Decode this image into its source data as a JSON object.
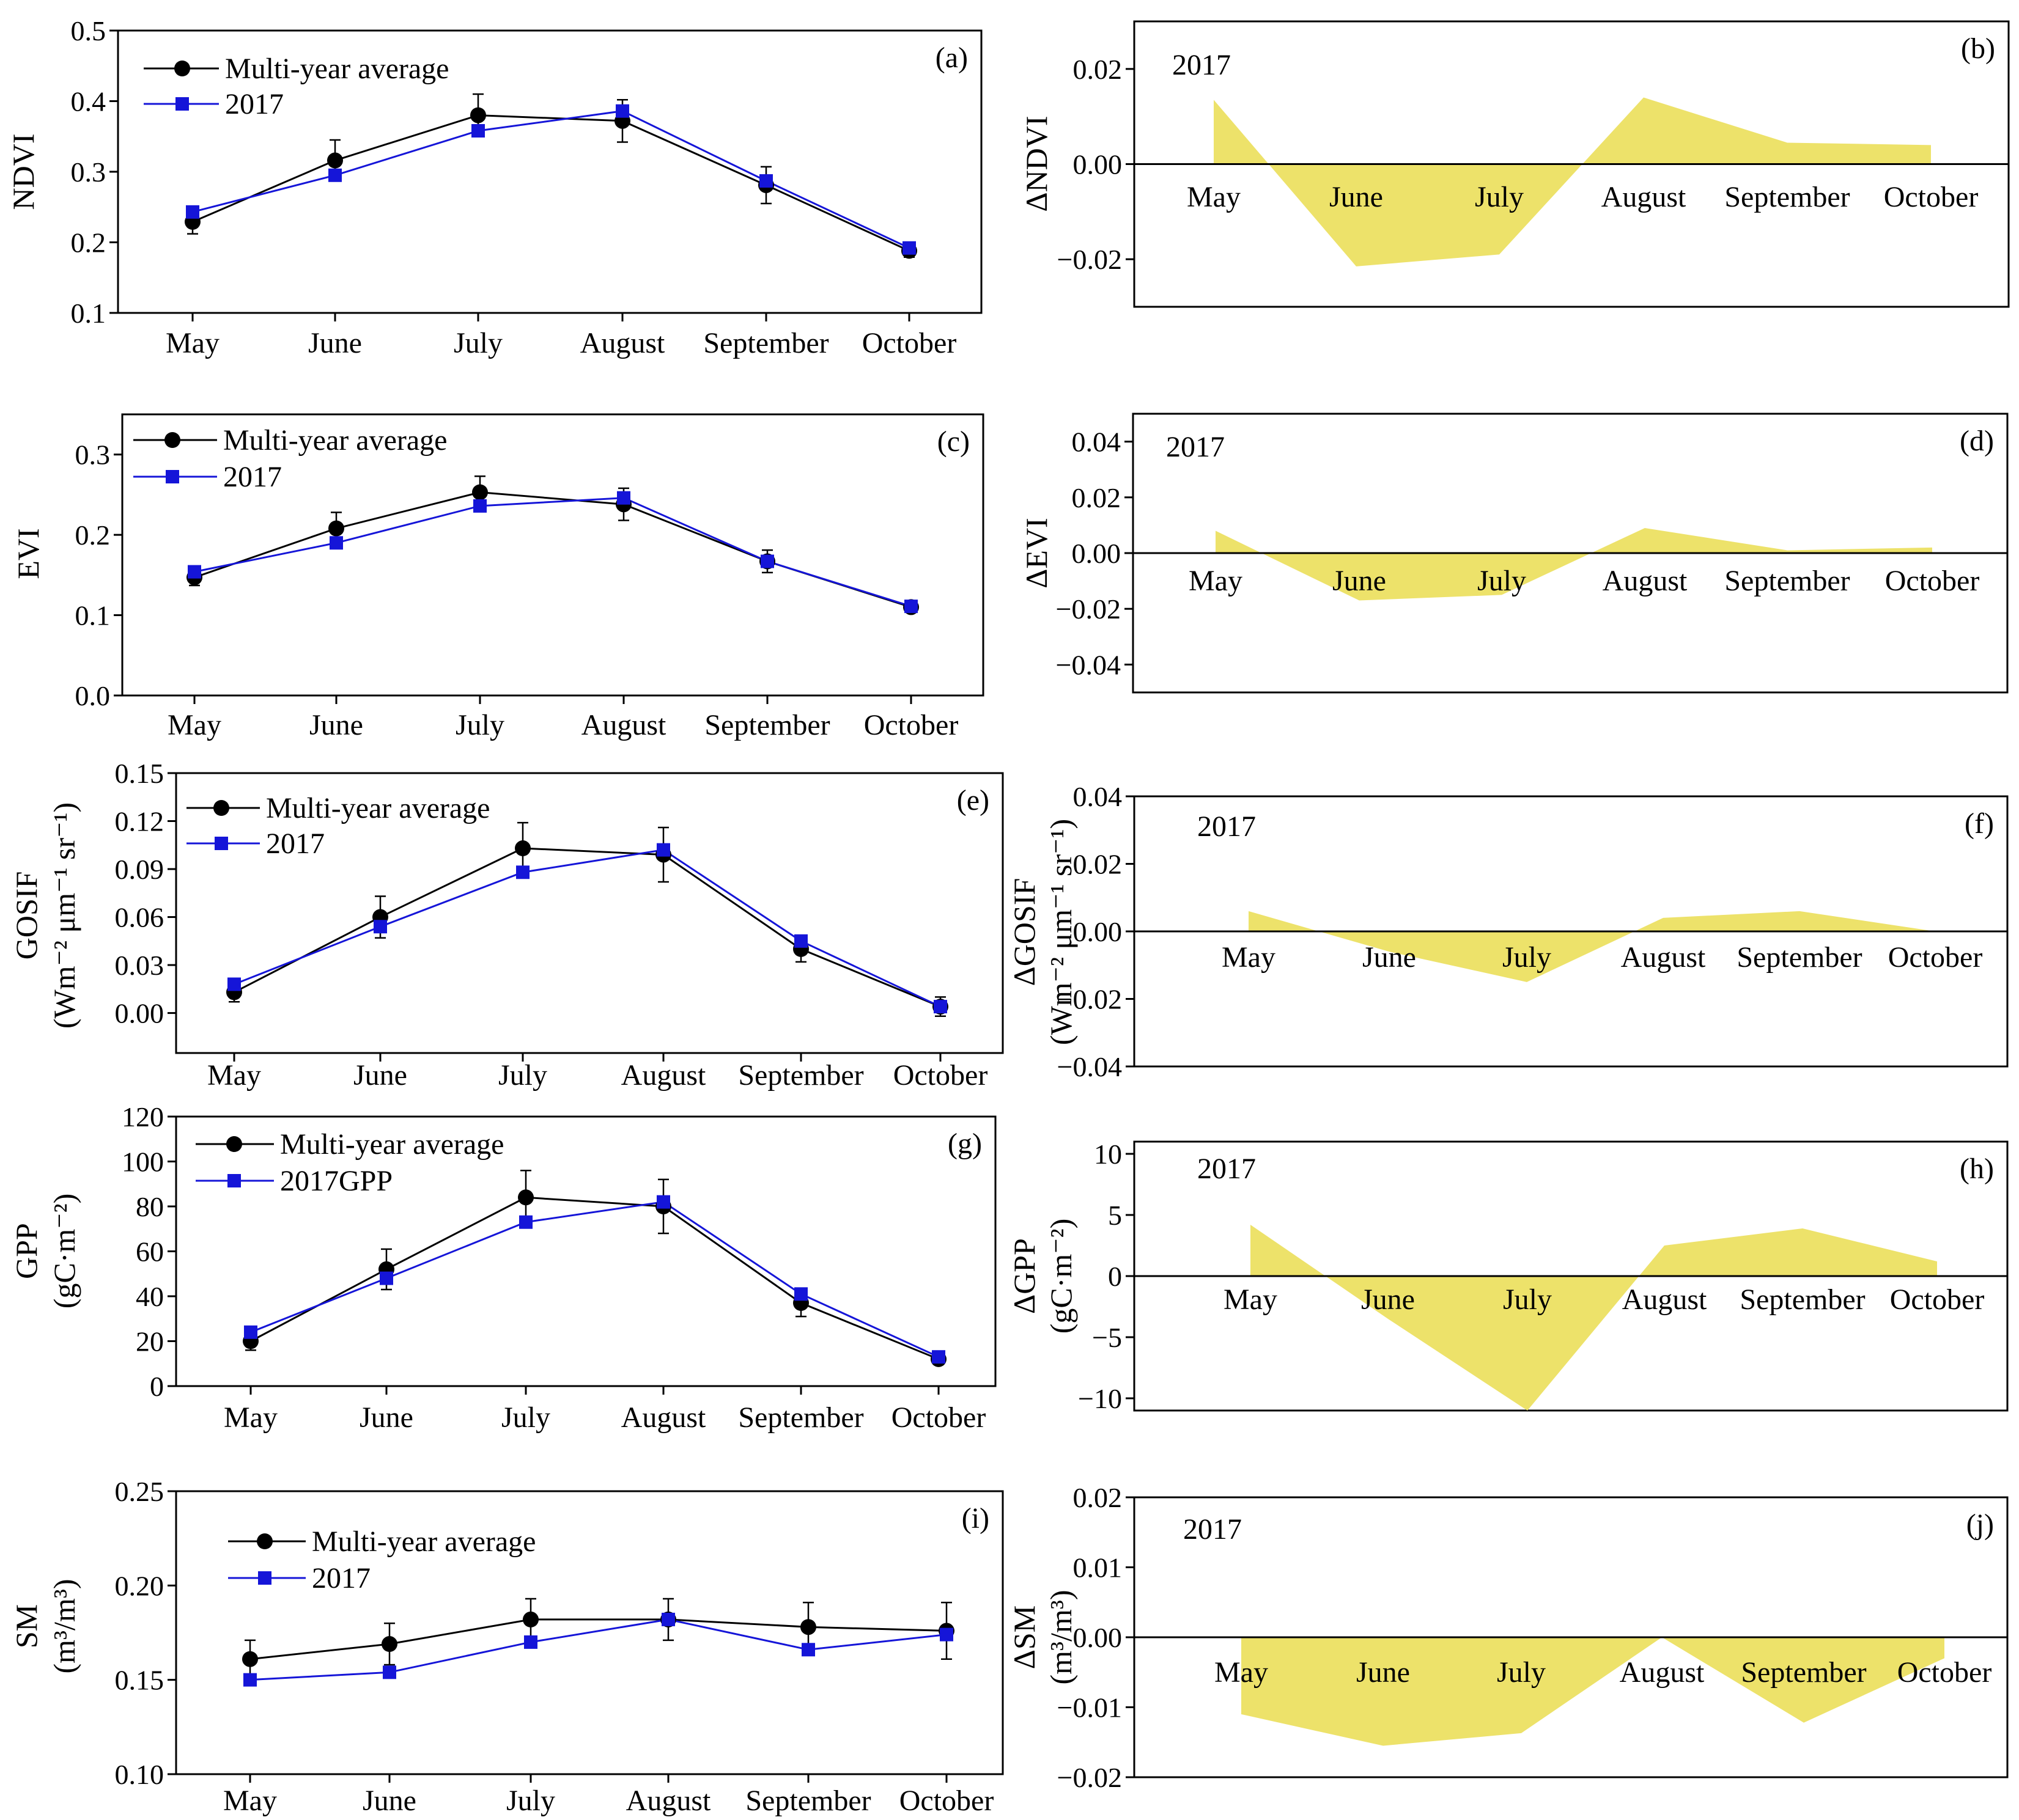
{
  "colors": {
    "avg": "#000000",
    "y2017": "#1515d8",
    "fill": "#ede26a",
    "axis": "#000000"
  },
  "months": [
    "May",
    "June",
    "July",
    "August",
    "September",
    "October"
  ],
  "chart_data": [
    {
      "id": "a",
      "type": "line",
      "panel_label": "(a)",
      "ylabel": "NDVI",
      "ylabel2": "",
      "ylim": [
        0.1,
        0.5
      ],
      "yticks": [
        0.1,
        0.2,
        0.3,
        0.4,
        0.5
      ],
      "ytick_labels": [
        "0.1",
        "0.2",
        "0.3",
        "0.4",
        "0.5"
      ],
      "categories": [
        "May",
        "June",
        "July",
        "August",
        "September",
        "October"
      ],
      "series": [
        {
          "name": "Multi-year average",
          "values": [
            0.229,
            0.316,
            0.38,
            0.372,
            0.281,
            0.188
          ],
          "errors": [
            0.017,
            0.029,
            0.03,
            0.03,
            0.026,
            0.009
          ]
        },
        {
          "name": "2017",
          "values": [
            0.243,
            0.295,
            0.358,
            0.386,
            0.287,
            0.192
          ]
        }
      ]
    },
    {
      "id": "b",
      "type": "area",
      "panel_label": "(b)",
      "year_label": "2017",
      "ylabel": "ΔNDVI",
      "ylabel2": "",
      "ylim": [
        -0.03,
        0.03
      ],
      "yticks": [
        -0.02,
        0.0,
        0.02
      ],
      "ytick_labels": [
        "−0.02",
        "0.00",
        "0.02"
      ],
      "categories": [
        "May",
        "June",
        "July",
        "August",
        "September",
        "October"
      ],
      "values": [
        0.0135,
        -0.0215,
        -0.019,
        0.014,
        0.0045,
        0.004
      ]
    },
    {
      "id": "c",
      "type": "line",
      "panel_label": "(c)",
      "ylabel": "EVI",
      "ylabel2": "",
      "ylim": [
        0.0,
        0.35
      ],
      "yticks": [
        0.0,
        0.1,
        0.2,
        0.3
      ],
      "ytick_labels": [
        "0.0",
        "0.1",
        "0.2",
        "0.3"
      ],
      "categories": [
        "May",
        "June",
        "July",
        "August",
        "September",
        "October"
      ],
      "series": [
        {
          "name": "Multi-year average",
          "values": [
            0.147,
            0.208,
            0.253,
            0.238,
            0.167,
            0.11
          ],
          "errors": [
            0.01,
            0.02,
            0.02,
            0.02,
            0.014,
            0.006
          ]
        },
        {
          "name": "2017",
          "values": [
            0.154,
            0.19,
            0.236,
            0.246,
            0.167,
            0.111
          ]
        }
      ]
    },
    {
      "id": "d",
      "type": "area",
      "panel_label": "(d)",
      "year_label": "2017",
      "ylabel": "ΔEVI",
      "ylabel2": "",
      "ylim": [
        -0.05,
        0.05
      ],
      "yticks": [
        -0.04,
        -0.02,
        0.0,
        0.02,
        0.04
      ],
      "ytick_labels": [
        "−0.04",
        "−0.02",
        "0.00",
        "0.02",
        "0.04"
      ],
      "categories": [
        "May",
        "June",
        "July",
        "August",
        "September",
        "October"
      ],
      "values": [
        0.008,
        -0.017,
        -0.015,
        0.009,
        0.001,
        0.002
      ]
    },
    {
      "id": "e",
      "type": "line",
      "panel_label": "(e)",
      "ylabel": "GOSIF",
      "ylabel2": "(Wm⁻² μm⁻¹ sr⁻¹)",
      "ylim": [
        -0.025,
        0.15
      ],
      "yticks": [
        0.0,
        0.03,
        0.06,
        0.09,
        0.12,
        0.15
      ],
      "ytick_labels": [
        "0.00",
        "0.03",
        "0.06",
        "0.09",
        "0.12",
        "0.15"
      ],
      "categories": [
        "May",
        "June",
        "July",
        "August",
        "September",
        "October"
      ],
      "series": [
        {
          "name": "Multi-year average",
          "values": [
            0.013,
            0.06,
            0.103,
            0.099,
            0.04,
            0.004
          ],
          "errors": [
            0.006,
            0.013,
            0.016,
            0.017,
            0.008,
            0.006
          ]
        },
        {
          "name": "2017",
          "values": [
            0.018,
            0.054,
            0.088,
            0.102,
            0.045,
            0.004
          ]
        }
      ]
    },
    {
      "id": "f",
      "type": "area",
      "panel_label": "(f)",
      "year_label": "2017",
      "ylabel": "ΔGOSIF",
      "ylabel2": "(Wm⁻² μm⁻¹ sr⁻¹)",
      "ylim": [
        -0.04,
        0.04
      ],
      "yticks": [
        -0.04,
        -0.02,
        0.0,
        0.02,
        0.04
      ],
      "ytick_labels": [
        "−0.04",
        "−0.02",
        "0.00",
        "0.02",
        "0.04"
      ],
      "categories": [
        "May",
        "June",
        "July",
        "August",
        "September",
        "October"
      ],
      "values": [
        0.006,
        -0.006,
        -0.015,
        0.004,
        0.006,
        0.0
      ]
    },
    {
      "id": "g",
      "type": "line",
      "panel_label": "(g)",
      "ylabel": "GPP",
      "ylabel2": "(gC·m⁻²)",
      "ylim": [
        0,
        120
      ],
      "yticks": [
        0,
        20,
        40,
        60,
        80,
        100,
        120
      ],
      "ytick_labels": [
        "0",
        "20",
        "40",
        "60",
        "80",
        "100",
        "120"
      ],
      "categories": [
        "May",
        "June",
        "July",
        "August",
        "September",
        "October"
      ],
      "series": [
        {
          "name": "Multi-year average",
          "values": [
            20,
            52,
            84,
            80,
            37,
            12
          ],
          "errors": [
            4,
            9,
            12,
            12,
            6,
            2
          ]
        },
        {
          "name": "2017GPP",
          "values": [
            24,
            48,
            73,
            82,
            41,
            13
          ]
        }
      ]
    },
    {
      "id": "h",
      "type": "area",
      "panel_label": "(h)",
      "year_label": "2017",
      "ylabel": "ΔGPP",
      "ylabel2": "(gC·m⁻²)",
      "ylim": [
        -11,
        11
      ],
      "yticks": [
        -10,
        -5,
        0,
        5,
        10
      ],
      "ytick_labels": [
        "−10",
        "−5",
        "0",
        "5",
        "10"
      ],
      "categories": [
        "May",
        "June",
        "July",
        "August",
        "September",
        "October"
      ],
      "values": [
        4.2,
        -3.5,
        -11.0,
        2.5,
        3.9,
        1.2
      ]
    },
    {
      "id": "i",
      "type": "line",
      "panel_label": "(i)",
      "ylabel": "SM",
      "ylabel2": "(m³/m³)",
      "ylim": [
        0.1,
        0.25
      ],
      "yticks": [
        0.1,
        0.15,
        0.2,
        0.25
      ],
      "ytick_labels": [
        "0.10",
        "0.15",
        "0.20",
        "0.25"
      ],
      "categories": [
        "May",
        "June",
        "July",
        "August",
        "September",
        "October"
      ],
      "series": [
        {
          "name": "Multi-year average",
          "values": [
            0.161,
            0.169,
            0.182,
            0.182,
            0.178,
            0.176
          ],
          "errors": [
            0.01,
            0.011,
            0.011,
            0.011,
            0.013,
            0.015
          ]
        },
        {
          "name": "2017",
          "values": [
            0.15,
            0.154,
            0.17,
            0.182,
            0.166,
            0.174
          ]
        }
      ]
    },
    {
      "id": "j",
      "type": "area",
      "panel_label": "(j)",
      "year_label": "2017",
      "ylabel": "ΔSM",
      "ylabel2": "(m³/m³)",
      "ylim": [
        -0.02,
        0.02
      ],
      "yticks": [
        -0.02,
        -0.01,
        0.0,
        0.01,
        0.02
      ],
      "ytick_labels": [
        "−0.02",
        "−0.01",
        "0.00",
        "0.01",
        "0.02"
      ],
      "categories": [
        "May",
        "June",
        "July",
        "August",
        "September",
        "October"
      ],
      "values": [
        -0.011,
        -0.0155,
        -0.0137,
        0.0,
        -0.0122,
        -0.003
      ]
    }
  ]
}
